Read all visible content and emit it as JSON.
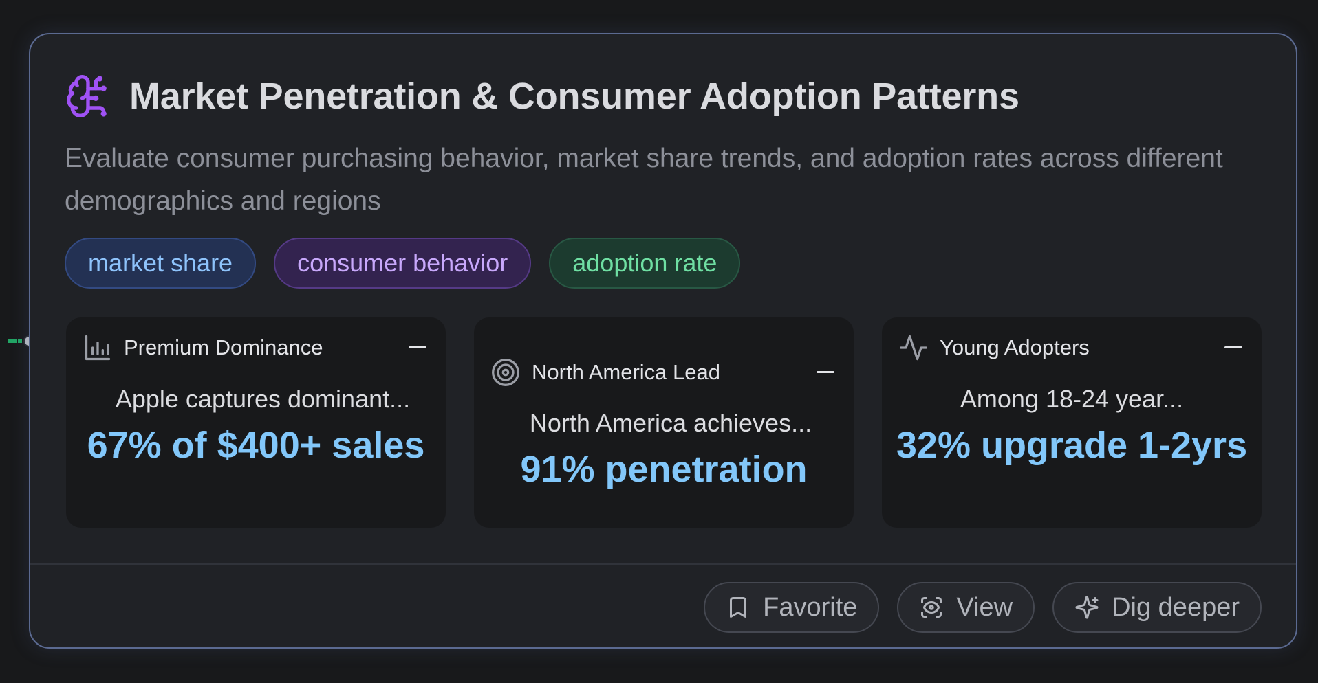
{
  "card": {
    "title": "Market Penetration & Consumer Adoption Patterns",
    "description": "Evaluate consumer purchasing behavior, market share trends, and adoption rates across different demographics and regions",
    "header_icon": "brain-icon",
    "accent_color": "#a052f5"
  },
  "tags": [
    {
      "label": "market share",
      "color": "#8ec3fb"
    },
    {
      "label": "consumer behavior",
      "color": "#c8a8fb"
    },
    {
      "label": "adoption rate",
      "color": "#6fdfa3"
    }
  ],
  "stats": [
    {
      "icon": "bar-chart-icon",
      "label": "Premium Dominance",
      "subtitle": "Apple captures dominant...",
      "value": "67% of $400+ sales"
    },
    {
      "icon": "target-icon",
      "label": "North America Lead",
      "subtitle": "North America achieves...",
      "value": "91% penetration"
    },
    {
      "icon": "activity-icon",
      "label": "Young Adopters",
      "subtitle": "Among 18-24 year...",
      "value": "32% upgrade 1-2yrs"
    }
  ],
  "actions": {
    "favorite": {
      "label": "Favorite",
      "icon": "bookmark-icon"
    },
    "view": {
      "label": "View",
      "icon": "eye-icon"
    },
    "dig_deeper": {
      "label": "Dig deeper",
      "icon": "sparkles-icon"
    }
  }
}
